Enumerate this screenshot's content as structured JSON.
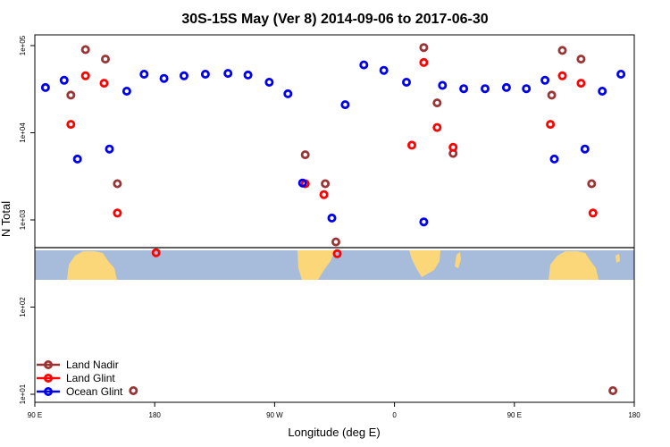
{
  "chart_data": {
    "type": "scatter",
    "title": "30S-15S May (Ver 8)   2014-09-06 to 2017-06-30",
    "xlabel": "Longitude (deg E)",
    "ylabel": "N Total",
    "x_ticks": [
      {
        "lon": 90,
        "label": "90 E"
      },
      {
        "lon": 180,
        "label": "180"
      },
      {
        "lon": 270,
        "label": "90 W"
      },
      {
        "lon": 360,
        "label": "0"
      },
      {
        "lon": 450,
        "label": "90 E"
      },
      {
        "lon": 540,
        "label": "180"
      }
    ],
    "xlim": [
      90,
      540
    ],
    "y_scale": "log",
    "ylim": [
      8,
      150000
    ],
    "y_ticks": [
      {
        "value": 10,
        "label": "1e+01"
      },
      {
        "value": 100,
        "label": "1e+02"
      },
      {
        "value": 1000,
        "label": "1e+03"
      },
      {
        "value": 10000,
        "label": "1e+04"
      },
      {
        "value": 100000,
        "label": "1e+05"
      }
    ],
    "legend_position": "bottom-left",
    "series": [
      {
        "name": "Land Nadir",
        "color": "#9b3535",
        "points": [
          {
            "x": 117,
            "y": 27000
          },
          {
            "x": 128,
            "y": 90000
          },
          {
            "x": 143,
            "y": 70000
          },
          {
            "x": 152,
            "y": 2600
          },
          {
            "x": 164,
            "y": 11
          },
          {
            "x": 293,
            "y": 5600
          },
          {
            "x": 308,
            "y": 2600
          },
          {
            "x": 316,
            "y": 560
          },
          {
            "x": 382,
            "y": 95000
          },
          {
            "x": 392,
            "y": 22000
          },
          {
            "x": 404,
            "y": 5800
          },
          {
            "x": 478,
            "y": 27000
          },
          {
            "x": 486,
            "y": 88000
          },
          {
            "x": 500,
            "y": 70000
          },
          {
            "x": 508,
            "y": 2600
          },
          {
            "x": 524,
            "y": 11
          }
        ]
      },
      {
        "name": "Land Glint",
        "color": "#ff0000",
        "points": [
          {
            "x": 117,
            "y": 12500
          },
          {
            "x": 128,
            "y": 45000
          },
          {
            "x": 142,
            "y": 37000
          },
          {
            "x": 152,
            "y": 1200
          },
          {
            "x": 181,
            "y": 420
          },
          {
            "x": 293,
            "y": 2600
          },
          {
            "x": 307,
            "y": 1950
          },
          {
            "x": 317,
            "y": 410
          },
          {
            "x": 373,
            "y": 7200
          },
          {
            "x": 382,
            "y": 64000
          },
          {
            "x": 392,
            "y": 11500
          },
          {
            "x": 404,
            "y": 6800
          },
          {
            "x": 477,
            "y": 12500
          },
          {
            "x": 486,
            "y": 45000
          },
          {
            "x": 500,
            "y": 37000
          },
          {
            "x": 509,
            "y": 1200
          }
        ]
      },
      {
        "name": "Ocean Glint",
        "color": "#0000ee",
        "points": [
          {
            "x": 98,
            "y": 33000
          },
          {
            "x": 112,
            "y": 40000
          },
          {
            "x": 122,
            "y": 5000
          },
          {
            "x": 146,
            "y": 6500
          },
          {
            "x": 159,
            "y": 30000
          },
          {
            "x": 172,
            "y": 47000
          },
          {
            "x": 187,
            "y": 42000
          },
          {
            "x": 202,
            "y": 45000
          },
          {
            "x": 218,
            "y": 47000
          },
          {
            "x": 235,
            "y": 48000
          },
          {
            "x": 250,
            "y": 46000
          },
          {
            "x": 266,
            "y": 38000
          },
          {
            "x": 280,
            "y": 28000
          },
          {
            "x": 291,
            "y": 2650
          },
          {
            "x": 313,
            "y": 1050
          },
          {
            "x": 323,
            "y": 21000
          },
          {
            "x": 337,
            "y": 60000
          },
          {
            "x": 352,
            "y": 52000
          },
          {
            "x": 369,
            "y": 38000
          },
          {
            "x": 382,
            "y": 950
          },
          {
            "x": 396,
            "y": 35000
          },
          {
            "x": 412,
            "y": 32000
          },
          {
            "x": 428,
            "y": 32000
          },
          {
            "x": 444,
            "y": 33000
          },
          {
            "x": 459,
            "y": 32000
          },
          {
            "x": 473,
            "y": 40000
          },
          {
            "x": 480,
            "y": 5000
          },
          {
            "x": 503,
            "y": 6500
          },
          {
            "x": 516,
            "y": 30000
          },
          {
            "x": 530,
            "y": 47000
          }
        ]
      }
    ]
  }
}
